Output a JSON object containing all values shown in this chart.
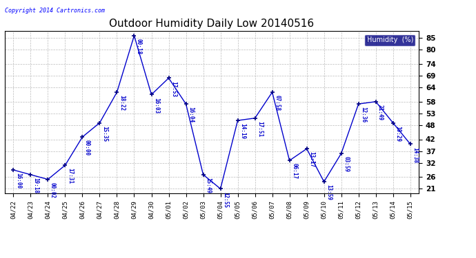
{
  "title": "Outdoor Humidity Daily Low 20140516",
  "copyright": "Copyright 2014 Cartronics.com",
  "legend_label": "Humidity  (%)",
  "x_labels": [
    "04/22",
    "04/23",
    "04/24",
    "04/25",
    "04/26",
    "04/27",
    "04/28",
    "04/29",
    "04/30",
    "05/01",
    "05/02",
    "05/03",
    "05/04",
    "05/05",
    "05/06",
    "05/07",
    "05/08",
    "05/09",
    "05/10",
    "05/11",
    "05/12",
    "05/13",
    "05/14",
    "05/15"
  ],
  "y_values": [
    29,
    27,
    25,
    31,
    43,
    49,
    62,
    86,
    61,
    68,
    57,
    27,
    21,
    50,
    51,
    62,
    33,
    38,
    24,
    36,
    57,
    58,
    49,
    40
  ],
  "point_labels": [
    "16:00",
    "19:18",
    "00:02",
    "17:31",
    "00:00",
    "15:35",
    "18:22",
    "00:18",
    "16:03",
    "17:53",
    "16:04",
    "15:49",
    "12:55",
    "14:19",
    "17:51",
    "07:58",
    "06:17",
    "13:17",
    "13:59",
    "03:59",
    "12:36",
    "21:49",
    "10:29",
    "14:38"
  ],
  "line_color": "#0000cc",
  "marker_color": "#000080",
  "bg_color": "#ffffff",
  "grid_color": "#bbbbbb",
  "y_ticks": [
    21,
    26,
    32,
    37,
    42,
    48,
    53,
    58,
    64,
    69,
    74,
    80,
    85
  ],
  "ylim": [
    19,
    88
  ],
  "title_fontsize": 11,
  "label_fontsize": 6.5,
  "legend_bg": "#000080",
  "legend_fg": "#ffffff"
}
